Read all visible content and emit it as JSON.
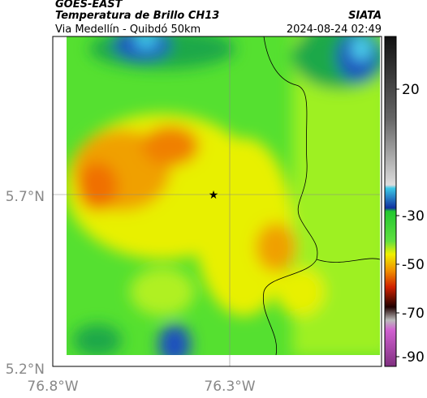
{
  "header": {
    "source": "GOES-EAST",
    "title": "Temperatura de Brillo CH13",
    "subtitle": "Via Medellín - Quibdó 50km",
    "agency": "SIATA",
    "datetime": "2024-08-24 02:49"
  },
  "axes": {
    "lat_labels": [
      "5.7°N",
      "5.2°N"
    ],
    "lon_labels": [
      "76.8°W",
      "76.3°W"
    ]
  },
  "colorbar": {
    "ticks": [
      20,
      -30,
      -50,
      -70,
      -90
    ]
  }
}
